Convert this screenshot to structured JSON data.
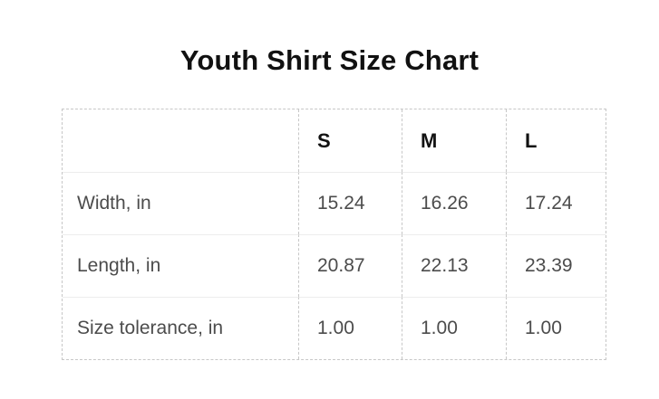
{
  "title": "Youth Shirt Size Chart",
  "colors": {
    "title_text": "#111111",
    "body_text": "#4c4c4c",
    "dashed_border": "#c7c7c7",
    "row_divider": "#ededed",
    "background": "#ffffff"
  },
  "table": {
    "columns": [
      "",
      "S",
      "M",
      "L"
    ],
    "rows": [
      {
        "label": "Width, in",
        "values": [
          "15.24",
          "16.26",
          "17.24"
        ]
      },
      {
        "label": "Length, in",
        "values": [
          "20.87",
          "22.13",
          "23.39"
        ]
      },
      {
        "label": "Size tolerance, in",
        "values": [
          "1.00",
          "1.00",
          "1.00"
        ]
      }
    ]
  },
  "chart_data": {
    "type": "table",
    "title": "Youth Shirt Size Chart",
    "columns": [
      "S",
      "M",
      "L"
    ],
    "rows": [
      {
        "label": "Width, in",
        "values": [
          15.24,
          16.26,
          17.24
        ]
      },
      {
        "label": "Length, in",
        "values": [
          20.87,
          22.13,
          23.39
        ]
      },
      {
        "label": "Size tolerance, in",
        "values": [
          1.0,
          1.0,
          1.0
        ]
      }
    ],
    "units": "in"
  }
}
